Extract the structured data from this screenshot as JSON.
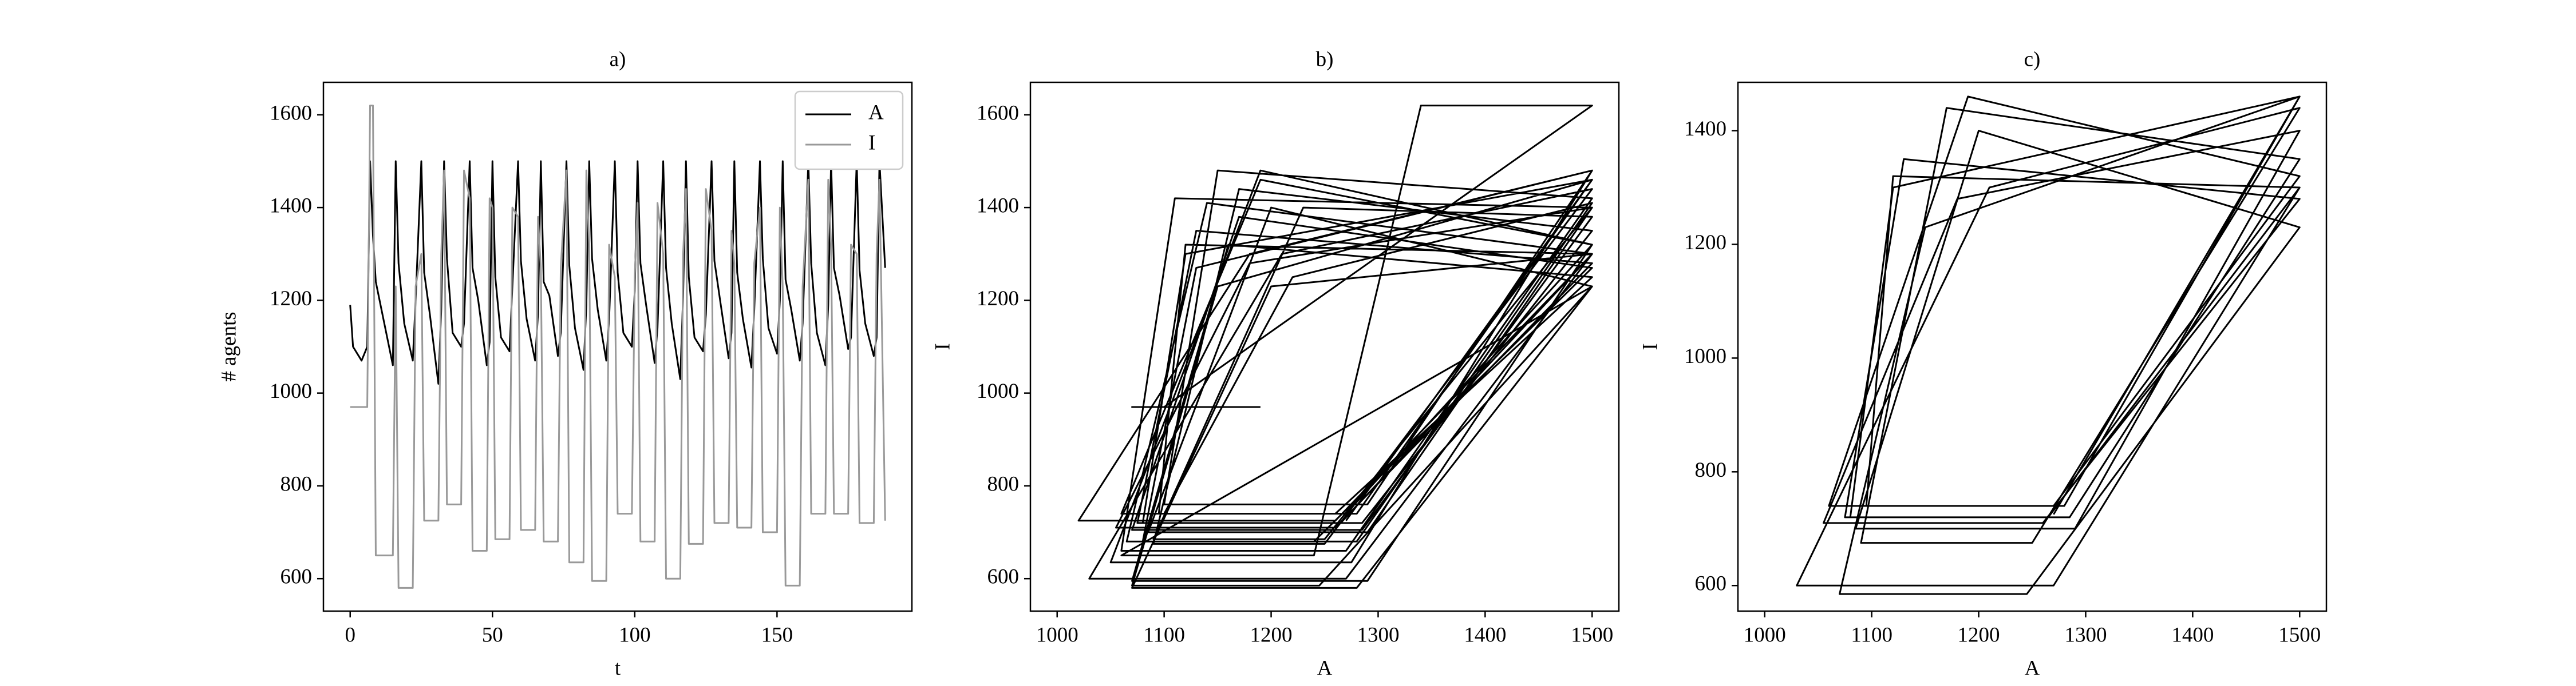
{
  "chart_data": [
    {
      "type": "line",
      "title": "a)",
      "xlabel": "t",
      "ylabel": "# agents",
      "x": [
        0,
        1,
        4,
        6,
        7,
        8,
        9,
        12,
        15,
        16,
        17,
        19,
        22,
        23,
        25,
        26,
        28,
        31,
        32,
        33,
        34,
        36,
        39,
        40,
        42,
        43,
        45,
        48,
        49,
        50,
        51,
        53,
        56,
        57,
        59,
        60,
        62,
        65,
        66,
        67,
        68,
        70,
        73,
        74,
        76,
        77,
        79,
        82,
        83,
        84,
        85,
        87,
        90,
        91,
        93,
        94,
        96,
        99,
        100,
        101,
        102,
        104,
        107,
        108,
        110,
        111,
        113,
        116,
        117,
        118,
        119,
        121,
        124,
        125,
        127,
        128,
        130,
        133,
        134,
        135,
        136,
        138,
        141,
        142,
        144,
        145,
        147,
        150,
        151,
        152,
        153,
        155,
        158,
        159,
        161,
        162,
        164,
        167,
        168,
        169,
        170,
        172,
        175,
        176,
        178,
        179,
        181,
        184,
        185,
        186,
        188
      ],
      "series": [
        {
          "name": "A",
          "color": "#000000",
          "values": [
            1190,
            1100,
            1070,
            1100,
            1500,
            1340,
            1240,
            1150,
            1060,
            1500,
            1280,
            1150,
            1070,
            1200,
            1500,
            1260,
            1170,
            1020,
            1180,
            1500,
            1290,
            1130,
            1100,
            1150,
            1500,
            1270,
            1200,
            1060,
            1110,
            1500,
            1250,
            1120,
            1090,
            1230,
            1500,
            1285,
            1160,
            1070,
            1170,
            1500,
            1240,
            1210,
            1080,
            1130,
            1500,
            1275,
            1140,
            1050,
            1190,
            1500,
            1290,
            1180,
            1070,
            1160,
            1500,
            1260,
            1130,
            1100,
            1220,
            1500,
            1280,
            1190,
            1065,
            1140,
            1500,
            1270,
            1150,
            1030,
            1210,
            1500,
            1250,
            1120,
            1090,
            1170,
            1500,
            1285,
            1200,
            1075,
            1130,
            1500,
            1260,
            1160,
            1055,
            1180,
            1500,
            1290,
            1140,
            1085,
            1200,
            1500,
            1245,
            1180,
            1070,
            1150,
            1500,
            1280,
            1130,
            1060,
            1190,
            1500,
            1270,
            1210,
            1095,
            1120,
            1500,
            1265,
            1150,
            1080,
            1120,
            1500,
            1270
          ]
        },
        {
          "name": "I",
          "color": "#999999",
          "values": [
            970,
            970,
            970,
            970,
            1620,
            1620,
            650,
            650,
            650,
            1230,
            580,
            580,
            580,
            1230,
            1300,
            725,
            725,
            725,
            1300,
            1480,
            760,
            760,
            760,
            1480,
            1420,
            660,
            660,
            660,
            1420,
            1400,
            685,
            685,
            685,
            1400,
            1380,
            705,
            705,
            705,
            1380,
            1270,
            680,
            680,
            680,
            1270,
            1480,
            635,
            635,
            635,
            1480,
            1320,
            595,
            595,
            595,
            1320,
            1250,
            740,
            740,
            740,
            1250,
            1410,
            680,
            680,
            680,
            1410,
            1300,
            600,
            600,
            600,
            1300,
            1440,
            675,
            675,
            675,
            1440,
            1350,
            720,
            720,
            720,
            1350,
            1280,
            710,
            710,
            710,
            1280,
            1400,
            700,
            700,
            700,
            1400,
            1230,
            585,
            585,
            585,
            1230,
            1460,
            740,
            740,
            740,
            1460,
            1320,
            740,
            740,
            740,
            1320,
            1300,
            720,
            720,
            720,
            1300,
            1460,
            725
          ]
        }
      ],
      "xlim": [
        -9.4,
        197.4
      ],
      "xticks": [
        0,
        50,
        100,
        150
      ],
      "ylim": [
        530,
        1670
      ],
      "yticks": [
        600,
        800,
        1000,
        1200,
        1400,
        1600
      ],
      "legend": "upper right"
    },
    {
      "type": "line",
      "title": "b)",
      "xlabel": "A",
      "ylabel": "I",
      "color": "#000000",
      "x": [
        1190,
        1100,
        1070,
        1100,
        1500,
        1340,
        1240,
        1150,
        1060,
        1500,
        1280,
        1150,
        1070,
        1200,
        1500,
        1260,
        1170,
        1020,
        1180,
        1500,
        1290,
        1130,
        1100,
        1150,
        1500,
        1270,
        1200,
        1060,
        1110,
        1500,
        1250,
        1120,
        1090,
        1230,
        1500,
        1285,
        1160,
        1070,
        1170,
        1500,
        1240,
        1210,
        1080,
        1130,
        1500,
        1275,
        1140,
        1050,
        1190,
        1500,
        1290,
        1180,
        1070,
        1160,
        1500,
        1260,
        1130,
        1100,
        1220,
        1500,
        1280,
        1190,
        1065,
        1140,
        1500,
        1270,
        1150,
        1030,
        1210,
        1500,
        1250,
        1120,
        1090,
        1170,
        1500,
        1285,
        1200,
        1075,
        1130,
        1500,
        1260,
        1160,
        1055,
        1180,
        1500,
        1290,
        1140,
        1085,
        1200,
        1500,
        1245,
        1180,
        1070,
        1150,
        1500,
        1280,
        1130,
        1060,
        1190,
        1500,
        1270,
        1210,
        1095,
        1120,
        1500,
        1265,
        1150,
        1080,
        1120,
        1500,
        1270
      ],
      "values": [
        970,
        970,
        970,
        970,
        1620,
        1620,
        650,
        650,
        650,
        1230,
        580,
        580,
        580,
        1230,
        1300,
        725,
        725,
        725,
        1300,
        1480,
        760,
        760,
        760,
        1480,
        1420,
        660,
        660,
        660,
        1420,
        1400,
        685,
        685,
        685,
        1400,
        1380,
        705,
        705,
        705,
        1380,
        1270,
        680,
        680,
        680,
        1270,
        1480,
        635,
        635,
        635,
        1480,
        1320,
        595,
        595,
        595,
        1320,
        1250,
        740,
        740,
        740,
        1250,
        1410,
        680,
        680,
        680,
        1410,
        1300,
        600,
        600,
        600,
        1300,
        1440,
        675,
        675,
        675,
        1440,
        1350,
        720,
        720,
        720,
        1350,
        1280,
        710,
        710,
        710,
        1280,
        1400,
        700,
        700,
        700,
        1400,
        1230,
        585,
        585,
        585,
        1230,
        1460,
        740,
        740,
        740,
        1460,
        1320,
        740,
        740,
        740,
        1320,
        1300,
        720,
        720,
        720,
        1300,
        1460,
        725
      ],
      "xlim": [
        975,
        1525
      ],
      "xticks": [
        1000,
        1100,
        1200,
        1300,
        1400,
        1500
      ],
      "ylim": [
        530,
        1670
      ],
      "yticks": [
        600,
        800,
        1000,
        1200,
        1400,
        1600
      ]
    },
    {
      "type": "line",
      "title": "c)",
      "xlabel": "A",
      "ylabel": "I",
      "color": "#000000",
      "x": [
        1500,
        1270,
        1150,
        1030,
        1210,
        1500,
        1250,
        1120,
        1090,
        1170,
        1500,
        1285,
        1200,
        1075,
        1130,
        1500,
        1260,
        1160,
        1055,
        1180,
        1500,
        1290,
        1140,
        1085,
        1200,
        1500,
        1245,
        1180,
        1070,
        1150,
        1500,
        1280,
        1130,
        1060,
        1190,
        1500,
        1270,
        1210,
        1095,
        1120,
        1500,
        1265,
        1150,
        1080,
        1120,
        1500,
        1270
      ],
      "values": [
        1300,
        600,
        600,
        600,
        1300,
        1440,
        675,
        675,
        675,
        1440,
        1350,
        720,
        720,
        720,
        1350,
        1280,
        710,
        710,
        710,
        1280,
        1400,
        700,
        700,
        700,
        1400,
        1230,
        585,
        585,
        585,
        1230,
        1460,
        740,
        740,
        740,
        1460,
        1320,
        740,
        740,
        740,
        1320,
        1300,
        720,
        720,
        720,
        1300,
        1460,
        725
      ],
      "xlim": [
        975,
        1525
      ],
      "xticks": [
        1000,
        1100,
        1200,
        1300,
        1400,
        1500
      ],
      "ylim": [
        555,
        1485
      ],
      "yticks": [
        600,
        800,
        1000,
        1200,
        1400
      ]
    }
  ]
}
